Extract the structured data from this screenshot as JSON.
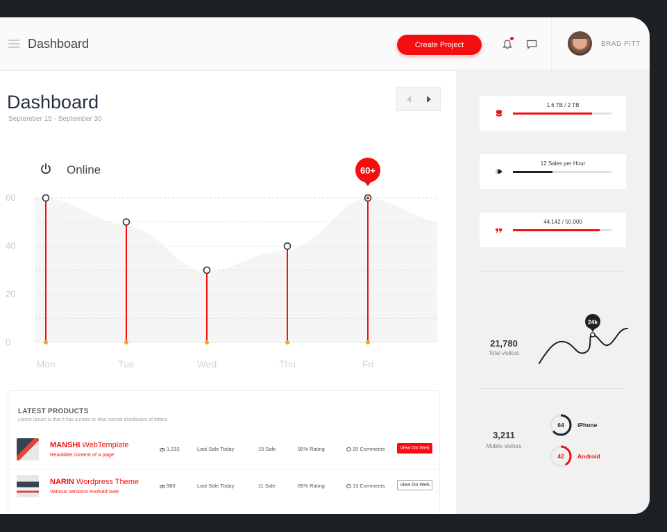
{
  "header": {
    "title": "Dashboard",
    "create_label": "Create Project",
    "user_name": "BRAD PITT"
  },
  "main": {
    "title": "Dashboard",
    "date_range": "September 15 - September 30",
    "status_label": "Online",
    "peak_badge": "60+"
  },
  "chart_data": {
    "type": "line",
    "categories": [
      "Mon",
      "Tue",
      "Wed",
      "Thu",
      "Fri"
    ],
    "values": [
      60,
      50,
      30,
      40,
      60
    ],
    "y_ticks": [
      60,
      40,
      20,
      0
    ],
    "ylim": [
      0,
      60
    ],
    "highlight_index": 4,
    "highlight_label": "60+",
    "grid": true,
    "colors": {
      "stem": "#f30f0f",
      "dot": "#f5a623",
      "area": "#f5f5f5"
    }
  },
  "products": {
    "title": "LATEST PRODUCTS",
    "subtitle": "Lorem Ipsum is that it has a more-or-less normal distribution of letters",
    "rows": [
      {
        "name_bold": "MANSHI",
        "name_rest": " WebTemplate",
        "desc": "Readable content of a page",
        "views": "1,232",
        "last_sale": "Last Sale Today",
        "sales": "15 Sale",
        "rating": "90%  Rating",
        "comments": "20 Comments",
        "button": "View On Web",
        "button_style": "filled"
      },
      {
        "name_bold": "NARIN",
        "name_rest": " Wordpress Theme",
        "desc": "Various versions evolved over",
        "views": "980",
        "last_sale": "Last Sale Today",
        "sales": "11 Sale",
        "rating": "85%  Rating",
        "comments": "13 Comments",
        "button": "View On Web",
        "button_style": "outline"
      }
    ]
  },
  "sidebar": {
    "storage": {
      "label": "1.6 TB / 2 TB",
      "fraction": 0.8,
      "color": "#f30f0f",
      "icon": "database-icon"
    },
    "sales": {
      "label": "12 Sales per Hour",
      "fraction": 0.4,
      "color": "#1c2126",
      "icon": "tag-icon"
    },
    "quota": {
      "label": "44,142 / 50,000",
      "fraction": 0.88,
      "color": "#f30f0f",
      "icon": "quote-icon"
    },
    "visitors": {
      "value": "21,780",
      "label": "Total visitors",
      "peak_badge": "24k"
    },
    "mobile": {
      "value": "3,211",
      "label": "Mobile visitors",
      "iphone": {
        "value": "64",
        "label": "iPhone",
        "fraction": 0.64,
        "color": "#1c2126"
      },
      "android": {
        "value": "42",
        "label": "Android",
        "fraction": 0.42,
        "color": "#f30f0f"
      }
    }
  }
}
